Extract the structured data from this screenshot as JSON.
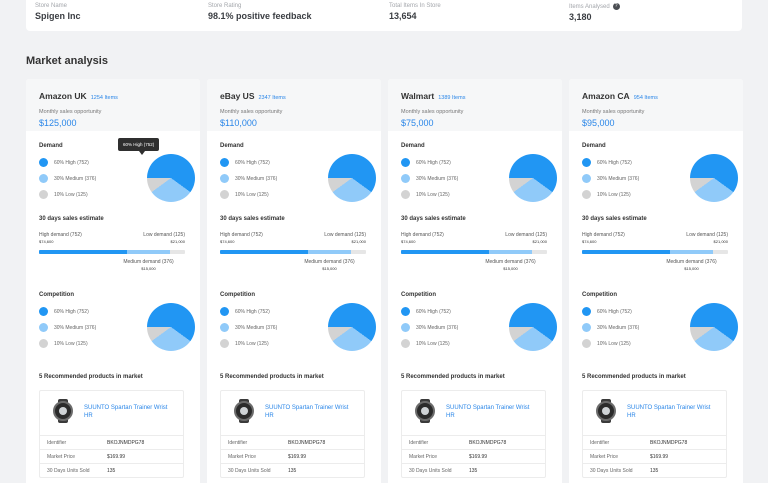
{
  "store": {
    "stats": [
      {
        "label": "Store Name",
        "value": "Spigen Inc"
      },
      {
        "label": "Store Rating",
        "value": "98.1% positive feedback"
      },
      {
        "label": "Total Items In Store",
        "value": "13,654"
      },
      {
        "label": "Items Analysed",
        "value": "3,180"
      }
    ],
    "info_icon": "?"
  },
  "section_title": "Market analysis",
  "colors": {
    "high": "#2196f3",
    "medium": "#90caf9",
    "low": "#d3d3d3",
    "accent": "#2a86e8"
  },
  "tooltip": "60% High (752)",
  "labels": {
    "opportunity": "Monthly sales opportunity",
    "demand": "Demand",
    "estimate": "30 days sales estimate",
    "competition": "Competition",
    "recommended": "5 Recommended products in market",
    "high_demand": "High demand (752)",
    "low_demand": "Low demand (125)",
    "medium_demand": "Medium demand (376)",
    "identifier": "Identifier",
    "market_price": "Market Price",
    "units_sold": "30 Days Units Sold"
  },
  "markets": [
    {
      "name": "Amazon UK",
      "items": "1254 Items",
      "opportunity": "$125,000",
      "demand": {
        "legend": [
          "60% High (752)",
          "30% Medium (376)",
          "10% Low (125)"
        ],
        "high_pct": 60,
        "medium_pct": 30,
        "low_pct": 10
      },
      "estimate": {
        "high_value": "$74,600",
        "low_value": "$21,000",
        "medium_value": "$15,000",
        "high_fill": 0.6,
        "medium_fill": 0.3
      },
      "competition": {
        "legend": [
          "60% High (752)",
          "30% Medium (376)",
          "10% Low (125)"
        ],
        "high_pct": 60,
        "medium_pct": 30,
        "low_pct": 10
      },
      "product": {
        "name": "SUUNTO Spartan Trainer Wrist HR",
        "identifier": "BKOJNMDPG78",
        "price": "$169.99",
        "units": "135"
      }
    },
    {
      "name": "eBay US",
      "items": "2347 Items",
      "opportunity": "$110,000",
      "demand": {
        "legend": [
          "60% High (752)",
          "30% Medium (376)",
          "10% Low (125)"
        ],
        "high_pct": 60,
        "medium_pct": 30,
        "low_pct": 10
      },
      "estimate": {
        "high_value": "$74,600",
        "low_value": "$21,000",
        "medium_value": "$15,000",
        "high_fill": 0.6,
        "medium_fill": 0.3
      },
      "competition": {
        "legend": [
          "60% High (752)",
          "30% Medium (376)",
          "10% Low (125)"
        ],
        "high_pct": 60,
        "medium_pct": 30,
        "low_pct": 10
      },
      "product": {
        "name": "SUUNTO Spartan Trainer Wrist HR",
        "identifier": "BKOJNMDPG78",
        "price": "$169.99",
        "units": "135"
      }
    },
    {
      "name": "Walmart",
      "items": "1389 Items",
      "opportunity": "$75,000",
      "demand": {
        "legend": [
          "60% High (752)",
          "30% Medium (376)",
          "10% Low (125)"
        ],
        "high_pct": 60,
        "medium_pct": 30,
        "low_pct": 10
      },
      "estimate": {
        "high_value": "$74,600",
        "low_value": "$21,000",
        "medium_value": "$15,000",
        "high_fill": 0.6,
        "medium_fill": 0.3
      },
      "competition": {
        "legend": [
          "60% High (752)",
          "30% Medium (376)",
          "10% Low (125)"
        ],
        "high_pct": 60,
        "medium_pct": 30,
        "low_pct": 10
      },
      "product": {
        "name": "SUUNTO Spartan Trainer Wrist HR",
        "identifier": "BKOJNMDPG78",
        "price": "$169.99",
        "units": "135"
      }
    },
    {
      "name": "Amazon CA",
      "items": "954 Items",
      "opportunity": "$95,000",
      "demand": {
        "legend": [
          "60% High (752)",
          "30% Medium (376)",
          "10% Low (125)"
        ],
        "high_pct": 60,
        "medium_pct": 30,
        "low_pct": 10
      },
      "estimate": {
        "high_value": "$74,600",
        "low_value": "$21,000",
        "medium_value": "$15,000",
        "high_fill": 0.6,
        "medium_fill": 0.3
      },
      "competition": {
        "legend": [
          "60% High (752)",
          "30% Medium (376)",
          "10% Low (125)"
        ],
        "high_pct": 60,
        "medium_pct": 30,
        "low_pct": 10
      },
      "product": {
        "name": "SUUNTO Spartan Trainer Wrist HR",
        "identifier": "BKOJNMDPG78",
        "price": "$169.99",
        "units": "135"
      }
    }
  ]
}
